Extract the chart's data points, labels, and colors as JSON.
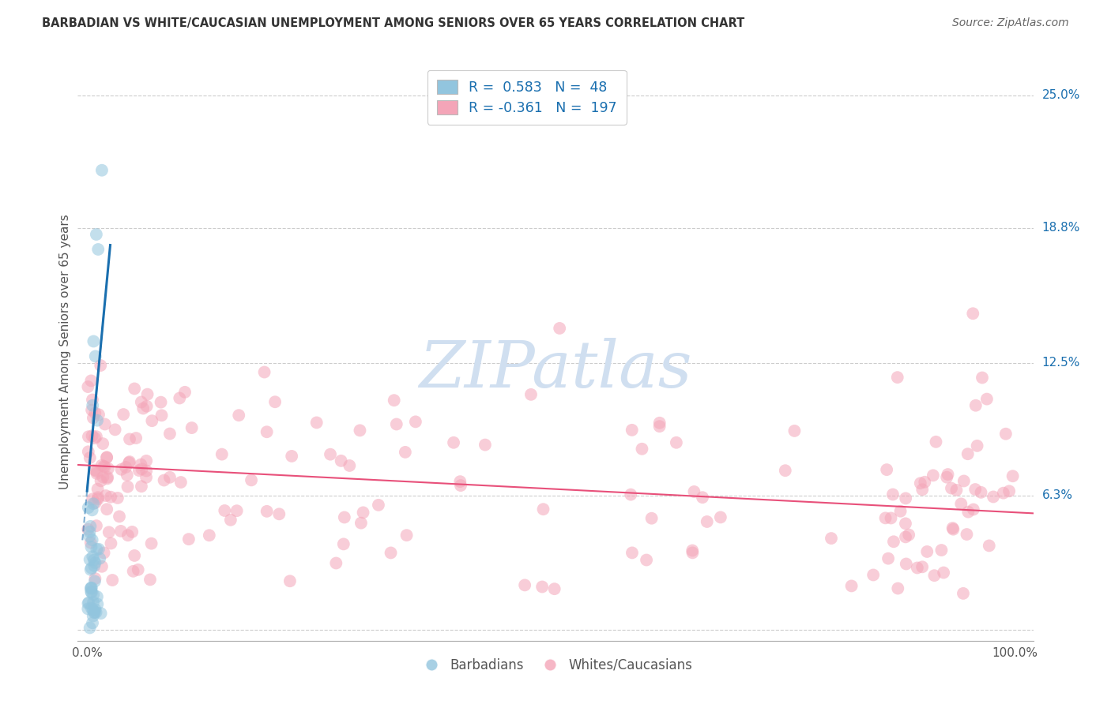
{
  "title": "BARBADIAN VS WHITE/CAUCASIAN UNEMPLOYMENT AMONG SENIORS OVER 65 YEARS CORRELATION CHART",
  "source": "Source: ZipAtlas.com",
  "ylabel": "Unemployment Among Seniors over 65 years",
  "xlim": [
    -0.01,
    1.02
  ],
  "ylim": [
    -0.005,
    0.265
  ],
  "yticks": [
    0.0,
    0.063,
    0.125,
    0.188,
    0.25
  ],
  "ytick_labels": [
    "",
    "6.3%",
    "12.5%",
    "18.8%",
    "25.0%"
  ],
  "xtick_labels": [
    "0.0%",
    "100.0%"
  ],
  "legend_blue_r": "0.583",
  "legend_blue_n": "48",
  "legend_pink_r": "-0.361",
  "legend_pink_n": "197",
  "blue_color": "#92c5de",
  "pink_color": "#f4a5b8",
  "blue_line_color": "#1a6faf",
  "pink_line_color": "#e8507a",
  "background_color": "#ffffff",
  "grid_color": "#cccccc",
  "title_color": "#333333",
  "source_color": "#666666",
  "label_color": "#555555",
  "tick_label_color": "#1a6faf",
  "watermark_color": "#d0dff0"
}
